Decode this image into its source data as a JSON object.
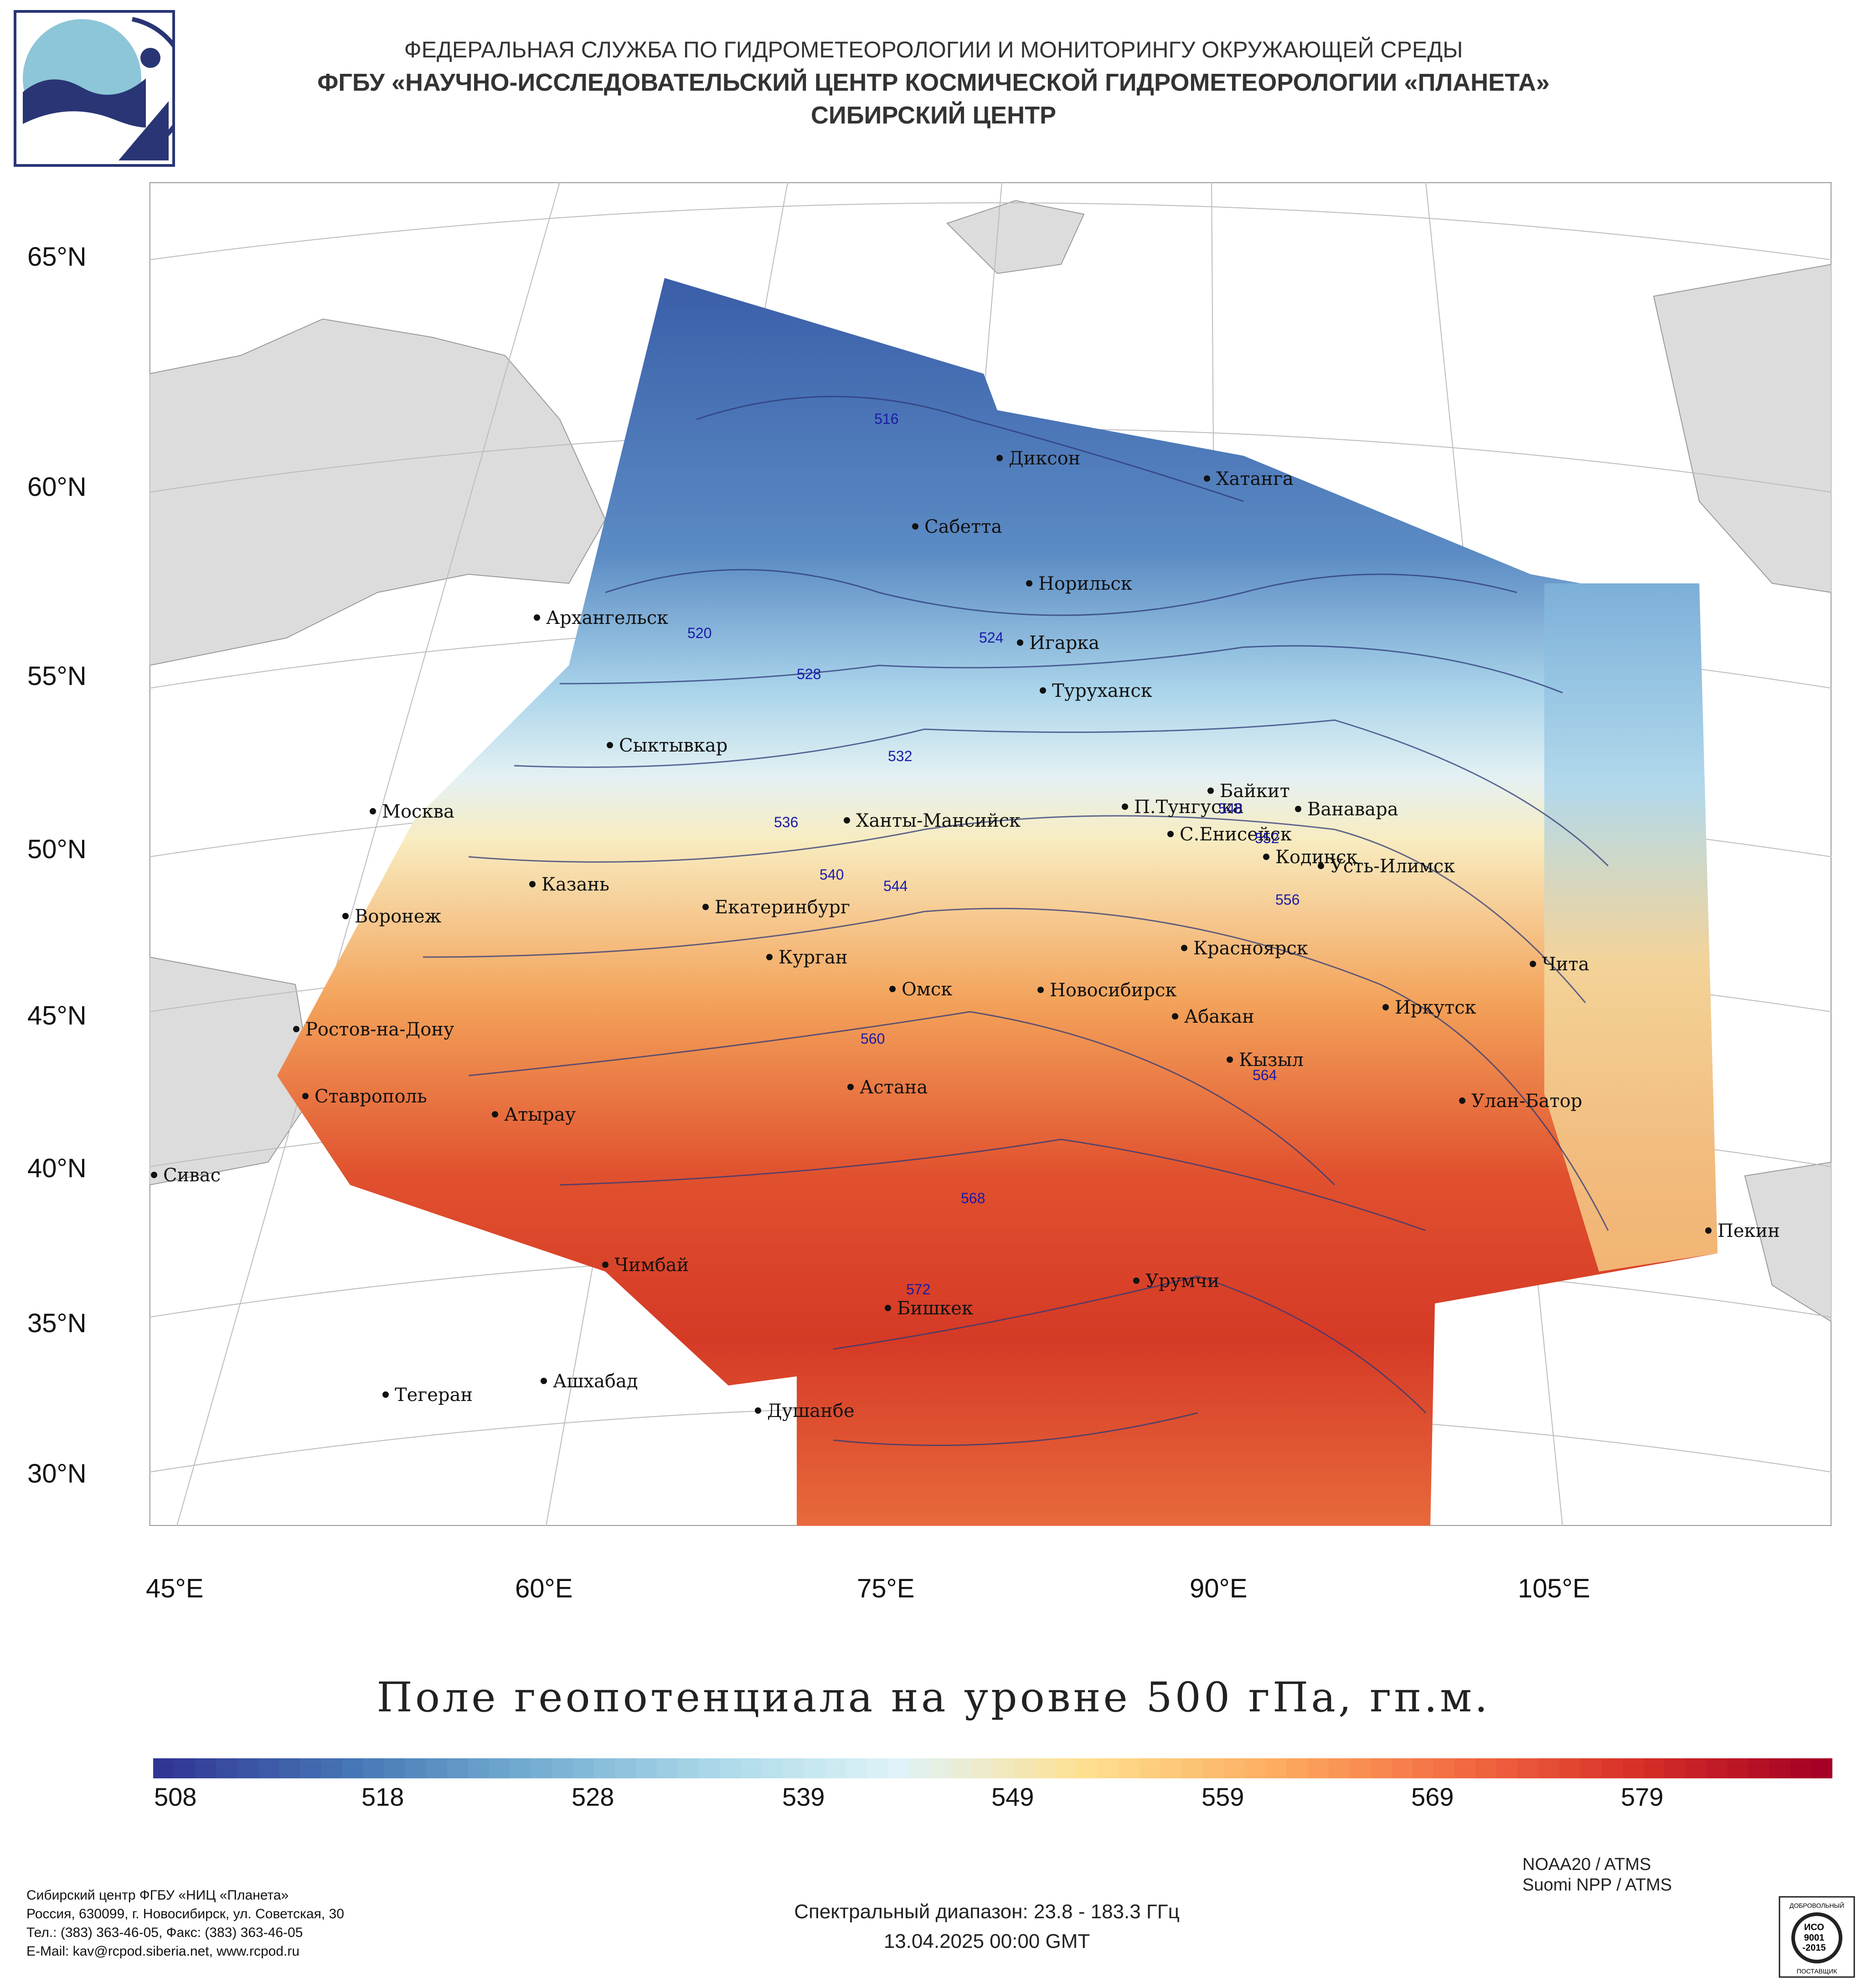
{
  "header": {
    "org_line1": "ФЕДЕРАЛЬНАЯ СЛУЖБА ПО ГИДРОМЕТЕОРОЛОГИИ И МОНИТОРИНГУ ОКРУЖАЮЩЕЙ СРЕДЫ",
    "org_line2": "ФГБУ «НАУЧНО-ИССЛЕДОВАТЕЛЬСКИЙ ЦЕНТР КОСМИЧЕСКОЙ ГИДРОМЕТЕОРОЛОГИИ «ПЛАНЕТА»",
    "org_line3": "СИБИРСКИЙ ЦЕНТР"
  },
  "map": {
    "lat_labels": [
      "65°N",
      "60°N",
      "55°N",
      "50°N",
      "45°N",
      "40°N",
      "35°N",
      "30°N"
    ],
    "lon_labels": [
      "45°E",
      "60°E",
      "75°E",
      "90°E",
      "105°E"
    ],
    "cities": [
      "Диксон",
      "Хатанга",
      "Сабетта",
      "Норильск",
      "Архангельск",
      "Игарка",
      "Туруханск",
      "Сыктывкар",
      "Байкит",
      "Москва",
      "П.Тунгуска",
      "Ванавара",
      "Ханты-Мансийск",
      "С.Енисейск",
      "Кодинск",
      "Усть-Илимск",
      "Казань",
      "Екатеринбург",
      "Воронеж",
      "Красноярск",
      "Курган",
      "Чита",
      "Омск",
      "Новосибирск",
      "Иркутск",
      "Ростов-на-Дону",
      "Абакан",
      "Кызыл",
      "Астана",
      "Ставрополь",
      "Улан-Батор",
      "Атырау",
      "Сивас",
      "Пекин",
      "Чимбай",
      "Урумчи",
      "Бишкек",
      "Ашхабад",
      "Тегеран",
      "Душанбе"
    ],
    "contour_labels": [
      "516",
      "520",
      "524",
      "528",
      "532",
      "536",
      "540",
      "544",
      "548",
      "552",
      "556",
      "560",
      "564",
      "568",
      "572"
    ],
    "colors": {
      "cold": "#3a5ea8",
      "cool": "#a9d4ea",
      "neutral": "#f8ecc0",
      "warm": "#f3a25a",
      "hot": "#d53a26",
      "land": "#dcdcdc",
      "border": "#888888",
      "contour": "#2e3a78",
      "contour_label": "#1a1aa8"
    }
  },
  "legend": {
    "title": "Поле геопотенциала на уровне 500 гПа, гп.м.",
    "ticks": [
      "508",
      "518",
      "528",
      "539",
      "549",
      "559",
      "569",
      "579"
    ],
    "gradient": [
      "#313695",
      "#4575b4",
      "#74add1",
      "#abd9e9",
      "#e0f3f8",
      "#fee090",
      "#fdae61",
      "#f46d43",
      "#d73027",
      "#a50026"
    ]
  },
  "footer": {
    "address_lines": [
      "Сибирский центр ФГБУ «НИЦ «Планета»",
      "Россия, 630099, г. Новосибирск, ул. Советская, 30",
      "Тел.: (383) 363-46-05, Факс: (383) 363-46-05",
      "E-Mail: kav@rcpod.siberia.net, www.rcpod.ru"
    ],
    "spectral": "Спектральный диапазон: 23.8 - 183.3 ГГц",
    "datetime": "13.04.2025 00:00 GMT",
    "satellites": [
      "NOAA20 / ATMS",
      "Suomi NPP / ATMS"
    ],
    "cert": [
      "ДОБРОВОЛЬНЫЙ",
      "ИСО",
      "9001",
      "-2015",
      "ПОСТАВЩИК"
    ]
  }
}
